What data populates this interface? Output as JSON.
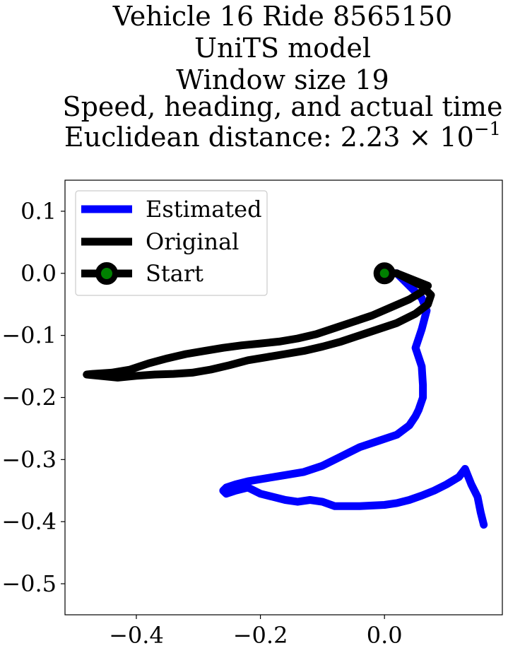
{
  "chart_data": {
    "type": "line",
    "title_lines": [
      "Vehicle 16 Ride 8565150",
      "UniTS model",
      "Window size 19",
      "Speed, heading, and actual time"
    ],
    "title_metric_label": "Euclidean distance: ",
    "title_metric_value": "2.23",
    "title_metric_exponent": "−1",
    "xlabel": "",
    "ylabel": "",
    "xlim": [
      -0.515,
      0.19
    ],
    "ylim": [
      -0.55,
      0.15
    ],
    "xticks": [
      -0.4,
      -0.2,
      0.0
    ],
    "xtick_labels": [
      "−0.4",
      "−0.2",
      "0.0"
    ],
    "yticks": [
      0.1,
      0.0,
      -0.1,
      -0.2,
      -0.3,
      -0.4,
      -0.5
    ],
    "ytick_labels": [
      "0.1",
      "0.0",
      "−0.1",
      "−0.2",
      "−0.3",
      "−0.4",
      "−0.5"
    ],
    "grid": false,
    "legend_position": "upper-left",
    "series": [
      {
        "name": "Estimated",
        "color": "#0000ff",
        "x": [
          0.0,
          0.02,
          0.04,
          0.06,
          0.068,
          0.06,
          0.05,
          0.06,
          0.062,
          0.062,
          0.055,
          0.05,
          0.04,
          0.02,
          -0.01,
          -0.04,
          -0.07,
          -0.1,
          -0.13,
          -0.16,
          -0.19,
          -0.22,
          -0.24,
          -0.255,
          -0.26,
          -0.255,
          -0.24,
          -0.22,
          -0.2,
          -0.18,
          -0.16,
          -0.14,
          -0.12,
          -0.1,
          -0.08,
          -0.06,
          -0.04,
          -0.02,
          0.0,
          0.02,
          0.04,
          0.06,
          0.08,
          0.1,
          0.12,
          0.13,
          0.14,
          0.15,
          0.155,
          0.16
        ],
        "y": [
          0.0,
          0.0,
          -0.02,
          -0.04,
          -0.06,
          -0.09,
          -0.12,
          -0.15,
          -0.18,
          -0.2,
          -0.22,
          -0.23,
          -0.245,
          -0.26,
          -0.27,
          -0.28,
          -0.295,
          -0.31,
          -0.32,
          -0.325,
          -0.33,
          -0.335,
          -0.34,
          -0.345,
          -0.35,
          -0.355,
          -0.35,
          -0.345,
          -0.355,
          -0.36,
          -0.365,
          -0.368,
          -0.365,
          -0.368,
          -0.375,
          -0.375,
          -0.375,
          -0.374,
          -0.373,
          -0.37,
          -0.365,
          -0.358,
          -0.35,
          -0.34,
          -0.328,
          -0.315,
          -0.34,
          -0.36,
          -0.385,
          -0.405
        ]
      },
      {
        "name": "Original",
        "color": "#000000",
        "x": [
          0.0,
          0.02,
          0.04,
          0.06,
          0.075,
          0.07,
          0.05,
          0.02,
          -0.01,
          -0.04,
          -0.07,
          -0.1,
          -0.13,
          -0.16,
          -0.19,
          -0.22,
          -0.25,
          -0.28,
          -0.31,
          -0.34,
          -0.37,
          -0.4,
          -0.43,
          -0.46,
          -0.48,
          -0.47,
          -0.44,
          -0.41,
          -0.38,
          -0.35,
          -0.32,
          -0.29,
          -0.26,
          -0.23,
          -0.2,
          -0.17,
          -0.14,
          -0.11,
          -0.08,
          -0.05,
          -0.02,
          0.01,
          0.04,
          0.06,
          0.07,
          0.04,
          0.02,
          0.0
        ],
        "y": [
          0.0,
          0.0,
          -0.01,
          -0.02,
          -0.035,
          -0.05,
          -0.065,
          -0.08,
          -0.09,
          -0.1,
          -0.11,
          -0.118,
          -0.125,
          -0.13,
          -0.135,
          -0.14,
          -0.148,
          -0.155,
          -0.16,
          -0.162,
          -0.163,
          -0.165,
          -0.168,
          -0.165,
          -0.163,
          -0.162,
          -0.16,
          -0.155,
          -0.145,
          -0.137,
          -0.13,
          -0.125,
          -0.12,
          -0.116,
          -0.113,
          -0.11,
          -0.105,
          -0.098,
          -0.088,
          -0.078,
          -0.068,
          -0.055,
          -0.042,
          -0.03,
          -0.02,
          -0.008,
          0.0,
          0.0
        ]
      }
    ],
    "start_marker": {
      "name": "Start",
      "x": 0.0,
      "y": 0.0,
      "fill_color": "#008000",
      "edge_color": "#000000"
    }
  }
}
